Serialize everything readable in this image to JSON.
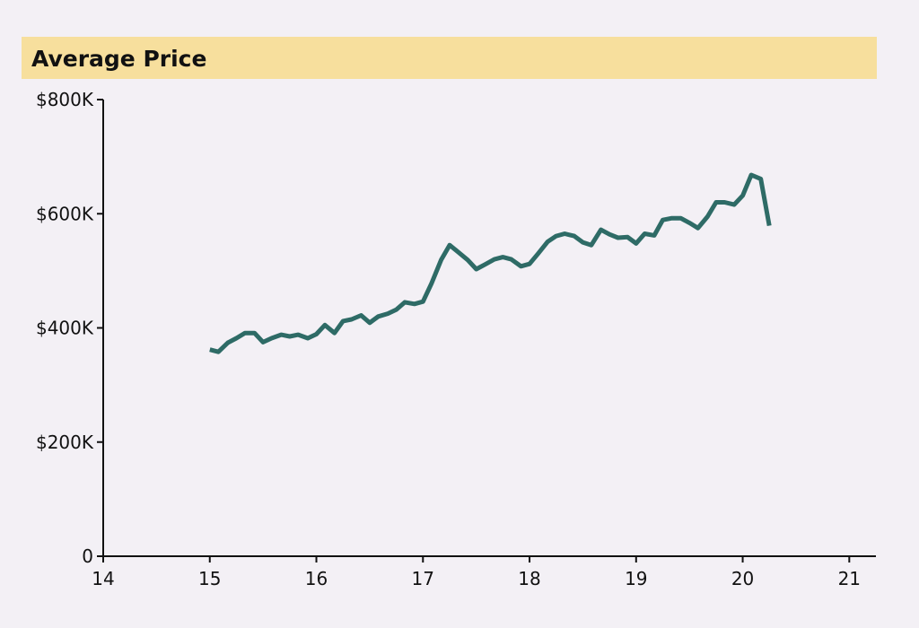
{
  "header": {
    "title": "Average Price"
  },
  "colors": {
    "background": "#f3f0f5",
    "title_band": "#f7df9d",
    "line": "#2e6b66",
    "axis": "#111111"
  },
  "chart_data": {
    "type": "line",
    "title": "Average Price",
    "xlabel": "",
    "ylabel": "",
    "xlim": [
      14,
      21.25
    ],
    "ylim": [
      0,
      800000
    ],
    "x_ticks": [
      14,
      15,
      16,
      17,
      18,
      19,
      20,
      21
    ],
    "y_ticks": [
      {
        "value": 0,
        "label": "0"
      },
      {
        "value": 200000,
        "label": "$200K"
      },
      {
        "value": 400000,
        "label": "$400K"
      },
      {
        "value": 600000,
        "label": "$600K"
      },
      {
        "value": 800000,
        "label": "$800K"
      }
    ],
    "grid": false,
    "series": [
      {
        "color": "#2e6b66",
        "points": [
          [
            15.0,
            362000
          ],
          [
            15.08,
            358000
          ],
          [
            15.17,
            374000
          ],
          [
            15.25,
            382000
          ],
          [
            15.33,
            391000
          ],
          [
            15.42,
            391000
          ],
          [
            15.5,
            375000
          ],
          [
            15.58,
            382000
          ],
          [
            15.67,
            388000
          ],
          [
            15.75,
            385000
          ],
          [
            15.83,
            388000
          ],
          [
            15.92,
            382000
          ],
          [
            16.0,
            389000
          ],
          [
            16.08,
            405000
          ],
          [
            16.17,
            391000
          ],
          [
            16.25,
            412000
          ],
          [
            16.33,
            415000
          ],
          [
            16.42,
            422000
          ],
          [
            16.5,
            409000
          ],
          [
            16.58,
            420000
          ],
          [
            16.67,
            425000
          ],
          [
            16.75,
            432000
          ],
          [
            16.83,
            445000
          ],
          [
            16.92,
            442000
          ],
          [
            17.0,
            446000
          ],
          [
            17.08,
            478000
          ],
          [
            17.17,
            519000
          ],
          [
            17.25,
            545000
          ],
          [
            17.33,
            533000
          ],
          [
            17.42,
            519000
          ],
          [
            17.5,
            503000
          ],
          [
            17.58,
            511000
          ],
          [
            17.67,
            520000
          ],
          [
            17.75,
            524000
          ],
          [
            17.83,
            520000
          ],
          [
            17.92,
            508000
          ],
          [
            18.0,
            512000
          ],
          [
            18.08,
            530000
          ],
          [
            18.17,
            551000
          ],
          [
            18.25,
            561000
          ],
          [
            18.33,
            565000
          ],
          [
            18.42,
            561000
          ],
          [
            18.5,
            550000
          ],
          [
            18.58,
            545000
          ],
          [
            18.67,
            572000
          ],
          [
            18.75,
            564000
          ],
          [
            18.83,
            558000
          ],
          [
            18.92,
            559000
          ],
          [
            19.0,
            548000
          ],
          [
            19.08,
            565000
          ],
          [
            19.17,
            562000
          ],
          [
            19.25,
            589000
          ],
          [
            19.33,
            592000
          ],
          [
            19.42,
            592000
          ],
          [
            19.5,
            584000
          ],
          [
            19.58,
            575000
          ],
          [
            19.67,
            595000
          ],
          [
            19.75,
            620000
          ],
          [
            19.83,
            620000
          ],
          [
            19.92,
            616000
          ],
          [
            20.0,
            632000
          ],
          [
            20.08,
            668000
          ],
          [
            20.17,
            661000
          ],
          [
            20.25,
            579000
          ]
        ]
      }
    ]
  }
}
